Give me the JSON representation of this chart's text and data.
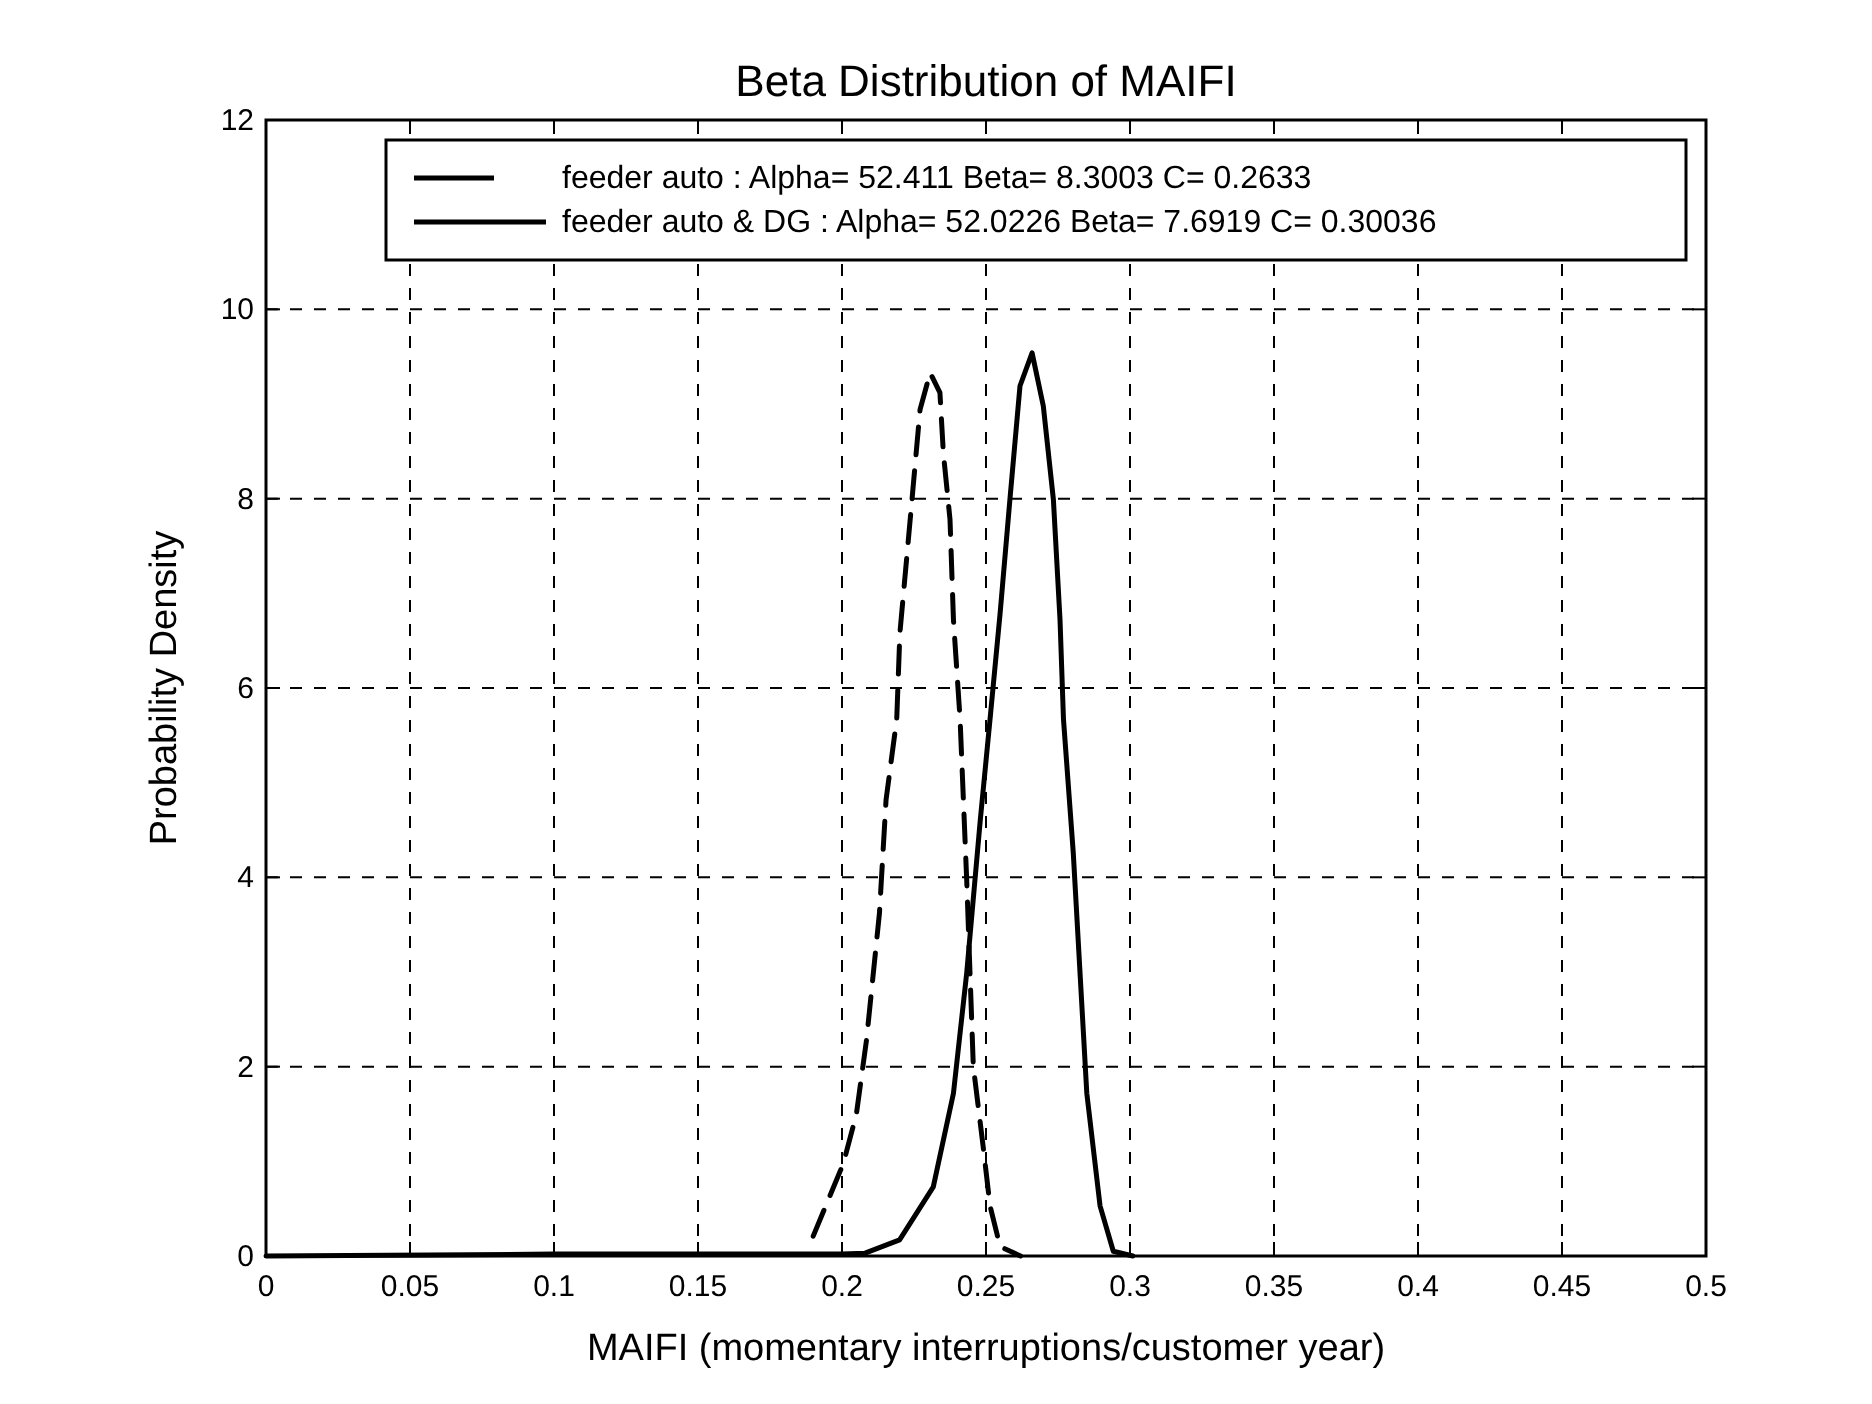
{
  "chart_data": {
    "type": "line",
    "title": "Beta Distribution of MAIFI",
    "xlabel": "MAIFI (momentary interruptions/customer year)",
    "ylabel": "Probability Density",
    "xlim": [
      0,
      0.5
    ],
    "ylim": [
      0,
      12
    ],
    "xticks": [
      0,
      0.05,
      0.1,
      0.15,
      0.2,
      0.25,
      0.3,
      0.35,
      0.4,
      0.45,
      0.5
    ],
    "yticks": [
      0,
      2,
      4,
      6,
      8,
      10,
      12
    ],
    "grid": true,
    "legend": "top right",
    "series": [
      {
        "name": "feeder auto : Alpha= 52.411 Beta= 8.3003 C= 0.2633",
        "color": "#000000",
        "line_style": "dashed",
        "x": [
          0.19,
          0.2005,
          0.205,
          0.2085,
          0.213,
          0.2153,
          0.219,
          0.2201,
          0.2243,
          0.2271,
          0.2306,
          0.234,
          0.2352,
          0.2375,
          0.2387,
          0.241,
          0.2433,
          0.2456,
          0.249,
          0.2514,
          0.2549,
          0.262
        ],
        "values": [
          0.21,
          0.98,
          1.5,
          2.28,
          3.62,
          4.82,
          5.67,
          6.58,
          7.99,
          8.94,
          9.33,
          9.12,
          8.48,
          7.78,
          6.72,
          5.67,
          3.97,
          2.0,
          1.16,
          0.53,
          0.1,
          0
        ]
      },
      {
        "name": "feeder auto & DG : Alpha= 52.0226 Beta= 7.6919 C= 0.30036",
        "color": "#000000",
        "line_style": "solid",
        "x": [
          0,
          0.1,
          0.2,
          0.208,
          0.22,
          0.2317,
          0.2387,
          0.2433,
          0.248,
          0.2514,
          0.2549,
          0.2583,
          0.2618,
          0.266,
          0.2699,
          0.2734,
          0.2757,
          0.2769,
          0.2803,
          0.285,
          0.2896,
          0.2942,
          0.301
        ],
        "values": [
          0,
          0.02,
          0.02,
          0.03,
          0.17,
          0.73,
          1.72,
          2.99,
          4.6,
          5.67,
          6.79,
          7.99,
          9.19,
          9.54,
          8.98,
          7.99,
          6.72,
          5.67,
          4.26,
          1.72,
          0.53,
          0.05,
          0
        ]
      }
    ]
  }
}
